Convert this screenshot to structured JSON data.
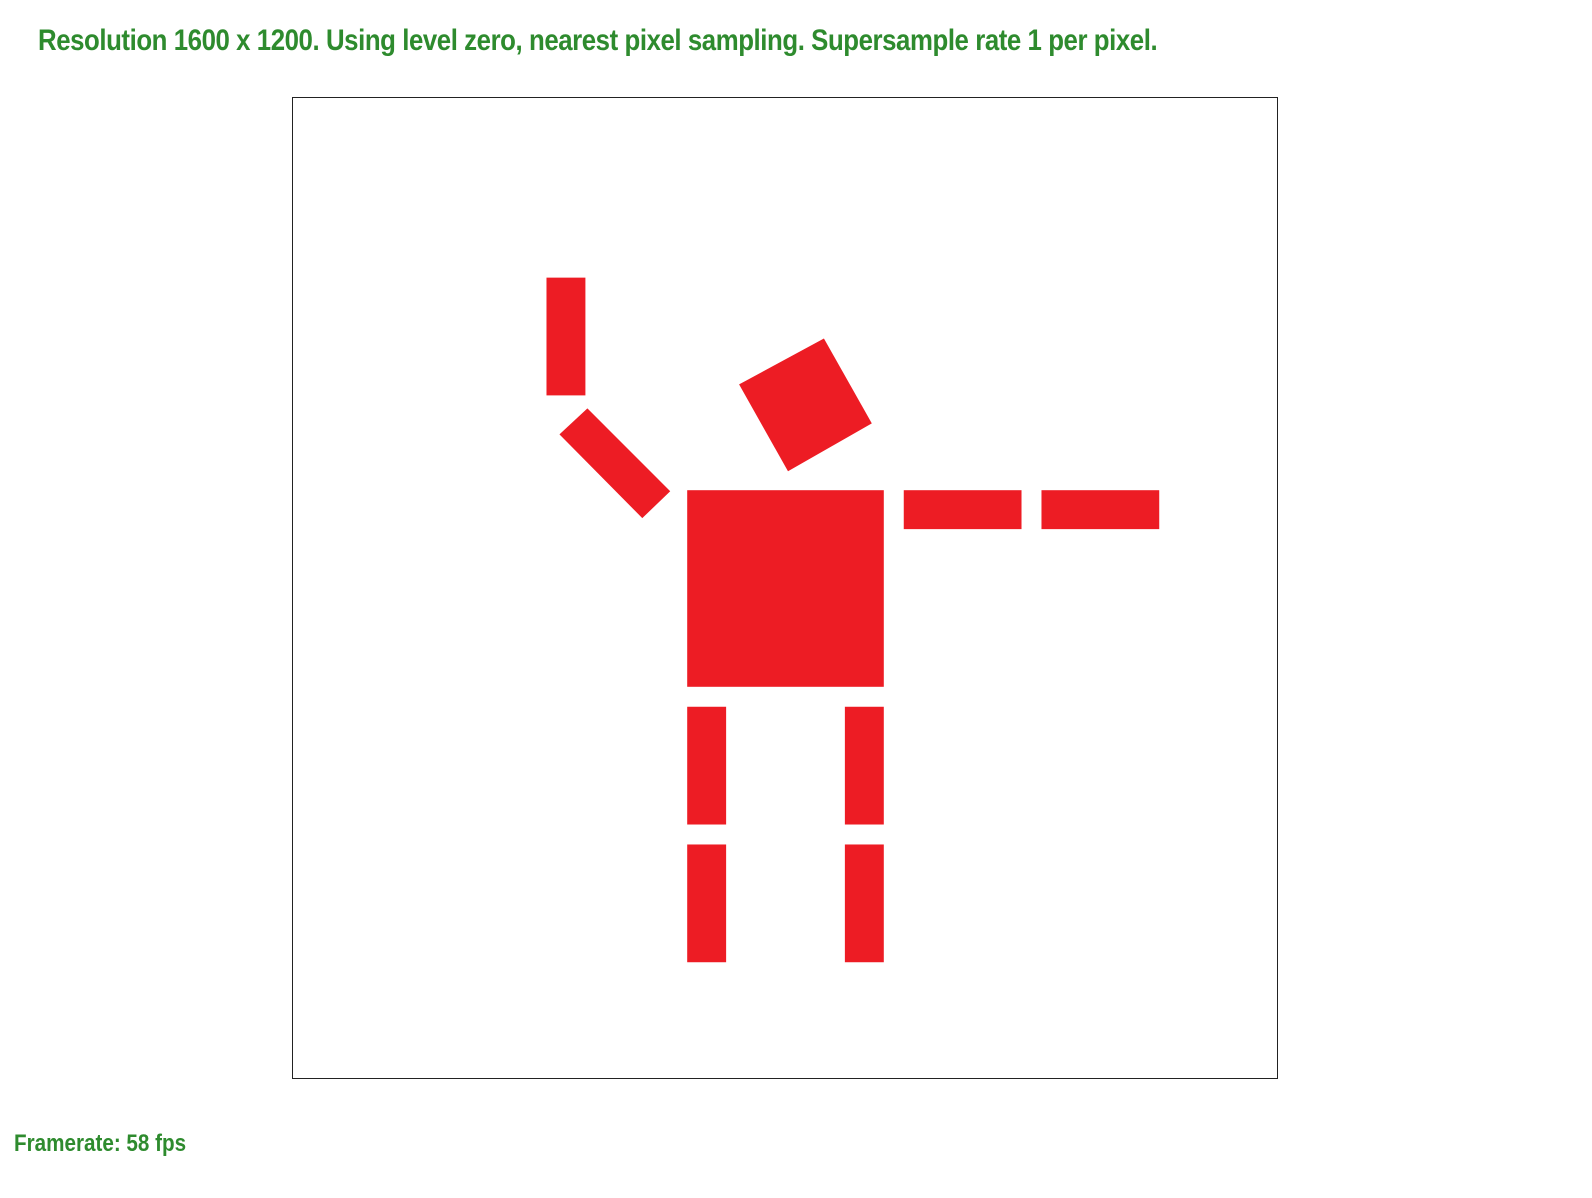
{
  "status": {
    "text": "Resolution 1600 x 1200. Using level zero, nearest pixel sampling. Supersample rate 1 per pixel."
  },
  "framerate": {
    "text": "Framerate: 58 fps"
  },
  "scene": {
    "fill_color": "#ed1c24",
    "border_color": "#222222",
    "text_color": "#2e8b2e"
  }
}
